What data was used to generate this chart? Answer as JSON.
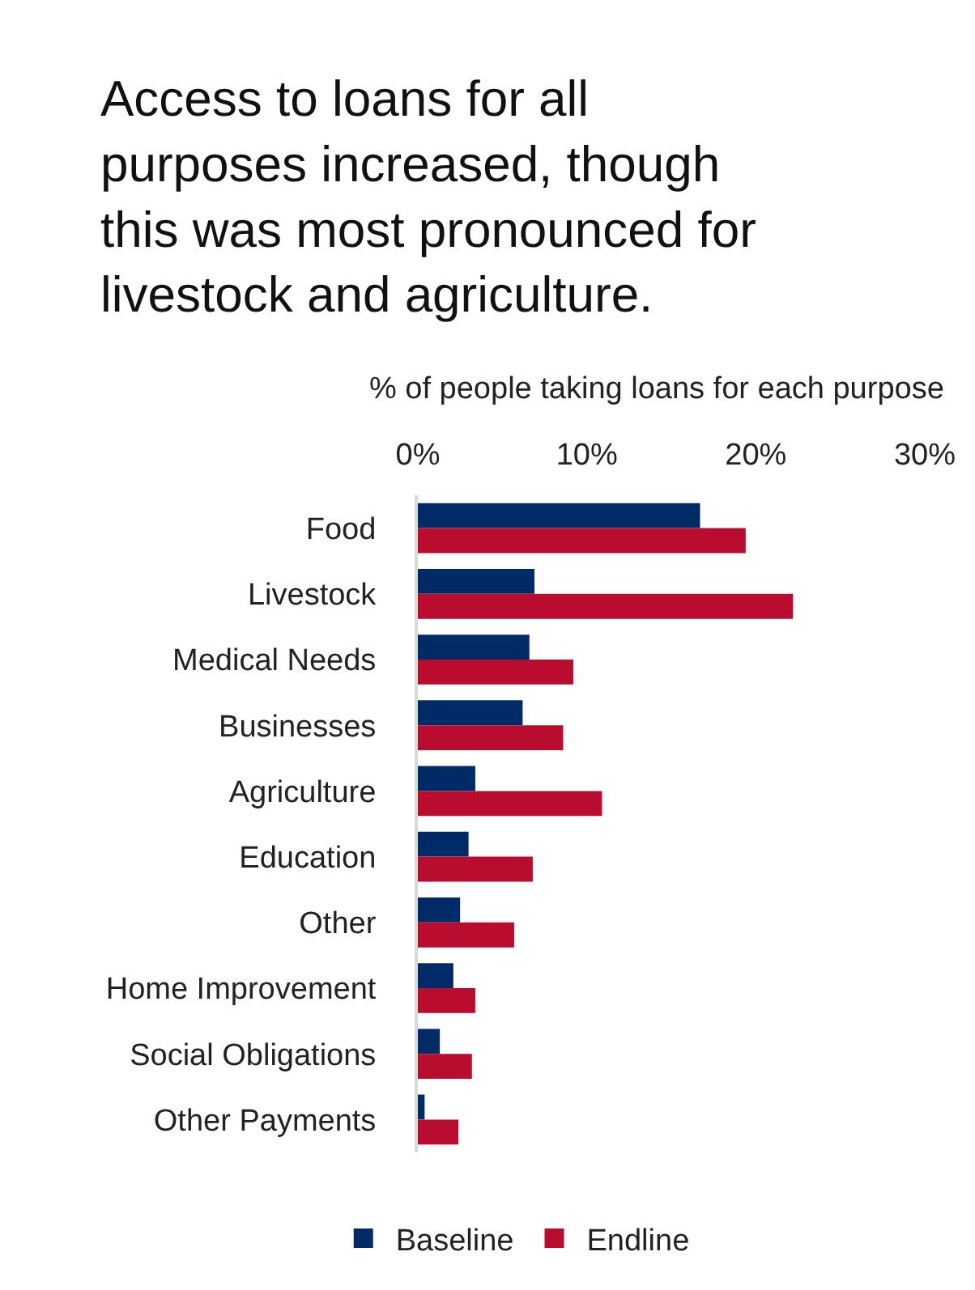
{
  "chart_data": {
    "type": "bar",
    "orientation": "horizontal",
    "title": "Access to loans for all purposes increased, though this was most pronounced for livestock and agriculture.",
    "subtitle": "% of people taking loans for each purpose",
    "categories": [
      "Food",
      "Livestock",
      "Medical Needs",
      "Businesses",
      "Agriculture",
      "Education",
      "Other",
      "Home Improvement",
      "Social Obligations",
      "Other Payments"
    ],
    "series": [
      {
        "name": "Baseline",
        "color": "#002b66",
        "values": [
          16.7,
          6.9,
          6.6,
          6.2,
          3.4,
          3.0,
          2.5,
          2.1,
          1.3,
          0.4
        ]
      },
      {
        "name": "Endline",
        "color": "#ba0c2f",
        "values": [
          19.4,
          22.2,
          9.2,
          8.6,
          10.9,
          6.8,
          5.7,
          3.4,
          3.2,
          2.4
        ]
      }
    ],
    "xlim": [
      0,
      30
    ],
    "xticks": [
      {
        "value": 0,
        "label": "0%"
      },
      {
        "value": 10,
        "label": "10%"
      },
      {
        "value": 20,
        "label": "20%"
      },
      {
        "value": 30,
        "label": "30%"
      }
    ],
    "legend": "bottom"
  }
}
